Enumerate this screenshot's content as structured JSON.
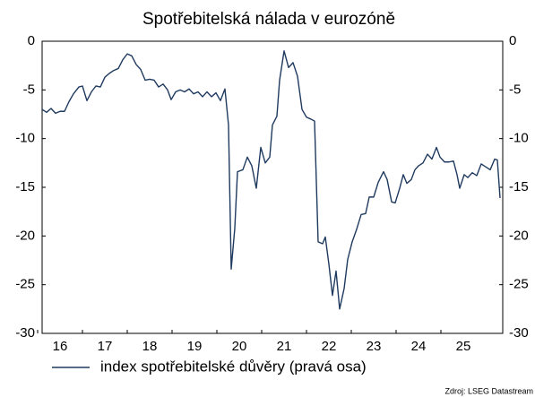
{
  "chart_data": {
    "type": "line",
    "title": "Spotřebitelská nálada v eurozóně",
    "source": "Zdroj: LSEG Datastream",
    "x": [
      16.1,
      16.2,
      16.3,
      16.4,
      16.5,
      16.6,
      16.7,
      16.8,
      16.92,
      17.0,
      17.1,
      17.2,
      17.3,
      17.4,
      17.5,
      17.6,
      17.7,
      17.8,
      17.9,
      18.0,
      18.1,
      18.2,
      18.3,
      18.4,
      18.5,
      18.6,
      18.7,
      18.8,
      18.9,
      18.98,
      19.08,
      19.18,
      19.28,
      19.38,
      19.48,
      19.58,
      19.68,
      19.78,
      19.88,
      19.98,
      20.08,
      20.18,
      20.26,
      20.32,
      20.4,
      20.46,
      20.58,
      20.68,
      20.78,
      20.88,
      20.98,
      21.08,
      21.18,
      21.24,
      21.34,
      21.4,
      21.5,
      21.6,
      21.7,
      21.8,
      21.9,
      22.0,
      22.1,
      22.18,
      22.26,
      22.36,
      22.42,
      22.5,
      22.58,
      22.66,
      22.74,
      22.84,
      22.92,
      23.02,
      23.12,
      23.22,
      23.32,
      23.4,
      23.5,
      23.6,
      23.72,
      23.8,
      23.9,
      23.98,
      24.08,
      24.16,
      24.24,
      24.34,
      24.42,
      24.5,
      24.6,
      24.7,
      24.8,
      24.9,
      24.98,
      25.08,
      25.18,
      25.28,
      25.36,
      25.42,
      25.52,
      25.6,
      25.7,
      25.8,
      25.9,
      26.0,
      26.1,
      26.2,
      26.26,
      26.32
    ],
    "series": [
      {
        "name": "index spotřebitelské důvěry (pravá osa)",
        "color": "#1f3a5f",
        "axis": "y2",
        "values": [
          -7.0,
          -7.3,
          -6.9,
          -7.4,
          -7.2,
          -7.2,
          -6.2,
          -5.4,
          -4.7,
          -4.6,
          -6.1,
          -5.2,
          -4.6,
          -4.7,
          -3.7,
          -3.3,
          -3.0,
          -2.8,
          -1.9,
          -1.3,
          -1.5,
          -2.4,
          -2.9,
          -4.0,
          -3.9,
          -4.0,
          -4.7,
          -4.4,
          -5.0,
          -6.0,
          -5.2,
          -5.0,
          -5.2,
          -4.9,
          -5.4,
          -5.2,
          -5.7,
          -5.2,
          -5.7,
          -5.3,
          -6.1,
          -4.9,
          -8.6,
          -23.4,
          -19.2,
          -13.4,
          -13.2,
          -11.9,
          -12.8,
          -15.1,
          -10.9,
          -12.5,
          -11.9,
          -8.6,
          -7.7,
          -4.0,
          -1.0,
          -2.7,
          -2.2,
          -3.6,
          -7.0,
          -7.8,
          -8.0,
          -8.2,
          -20.6,
          -20.8,
          -20.1,
          -22.9,
          -26.1,
          -23.6,
          -27.5,
          -25.4,
          -22.4,
          -20.6,
          -19.3,
          -17.8,
          -17.7,
          -16.0,
          -16.0,
          -14.5,
          -13.4,
          -14.2,
          -16.5,
          -16.6,
          -15.1,
          -13.7,
          -14.6,
          -14.2,
          -13.2,
          -12.8,
          -12.5,
          -11.6,
          -12.1,
          -10.9,
          -11.9,
          -12.4,
          -12.4,
          -12.3,
          -13.7,
          -15.1,
          -13.7,
          -14.0,
          -13.5,
          -13.8,
          -12.6,
          -12.9,
          -13.2,
          -12.1,
          -12.2,
          -16.1
        ]
      }
    ],
    "xlim": [
      16.1,
      26.38
    ],
    "xticks": [
      16,
      17,
      18,
      19,
      20,
      21,
      22,
      23,
      24,
      25
    ],
    "ylim": [
      -30,
      0
    ],
    "yticks": [
      0,
      -5,
      -10,
      -15,
      -20,
      -25,
      -30
    ],
    "y2lim": [
      -30,
      0
    ],
    "y2ticks": [
      0,
      -5,
      -10,
      -15,
      -20,
      -25,
      -30
    ],
    "legend": "bottom"
  }
}
